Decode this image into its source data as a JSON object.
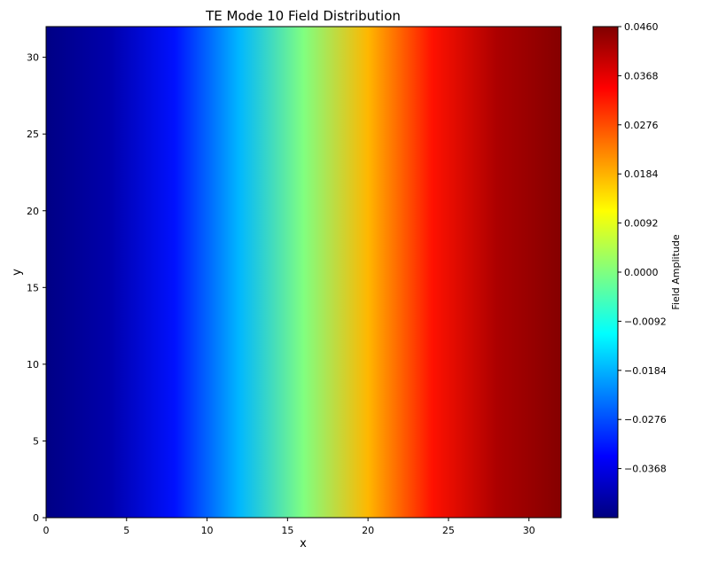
{
  "chart_data": {
    "type": "heatmap",
    "title": "TE Mode 10 Field Distribution",
    "xlabel": "x",
    "ylabel": "y",
    "xlim": [
      0,
      32
    ],
    "ylim": [
      0,
      32
    ],
    "x_ticks": [
      0,
      5,
      10,
      15,
      20,
      25,
      30
    ],
    "y_ticks": [
      0,
      5,
      10,
      15,
      20,
      25,
      30
    ],
    "x_tick_labels": [
      "0",
      "5",
      "10",
      "15",
      "20",
      "25",
      "30"
    ],
    "y_tick_labels": [
      "0",
      "5",
      "10",
      "15",
      "20",
      "25",
      "30"
    ],
    "colormap": "jet",
    "colorbar": {
      "label": "Field Amplitude",
      "min": -0.046,
      "max": 0.046,
      "ticks": [
        -0.0368,
        -0.0276,
        -0.0184,
        -0.0092,
        0.0,
        0.0092,
        0.0184,
        0.0276,
        0.0368,
        0.046
      ],
      "tick_labels": [
        "−0.0368",
        "−0.0276",
        "−0.0184",
        "−0.0092",
        "0.0000",
        "0.0092",
        "0.0184",
        "0.0276",
        "0.0368",
        "0.0460"
      ]
    },
    "field_profile": {
      "description_axis": "x",
      "x": [
        0,
        4,
        8,
        12,
        16,
        20,
        24,
        28,
        32
      ],
      "values": [
        -0.0455,
        -0.042,
        -0.033,
        -0.018,
        0.0,
        0.018,
        0.033,
        0.042,
        0.0455
      ]
    }
  }
}
